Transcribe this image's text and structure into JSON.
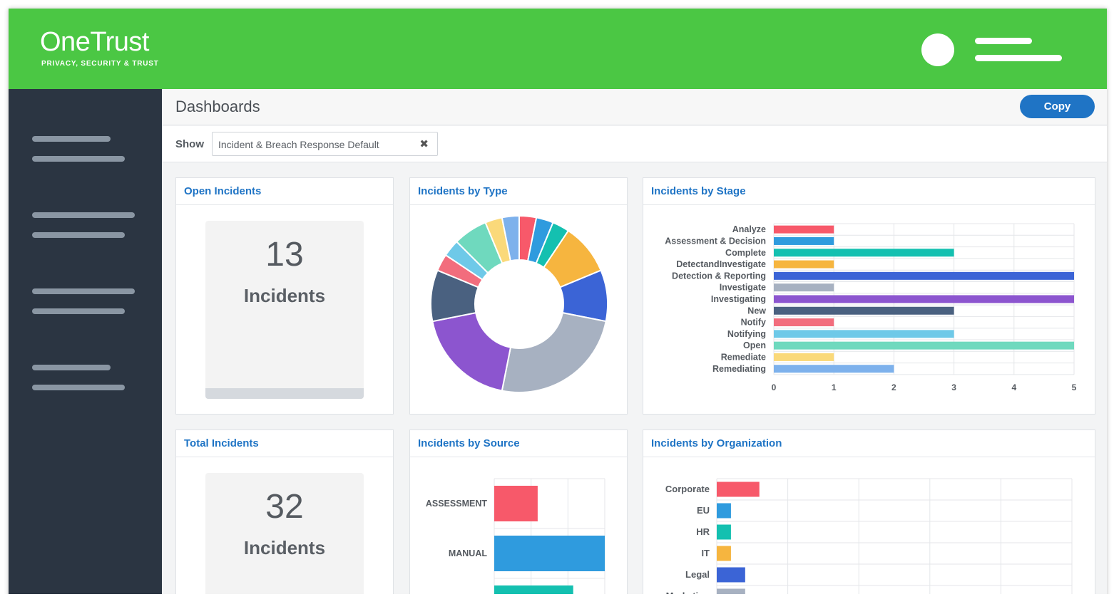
{
  "header": {
    "brand_name": "OneTrust",
    "brand_tagline": "PRIVACY, SECURITY & TRUST",
    "color": "#4bc744"
  },
  "page": {
    "title": "Dashboards",
    "copy_label": "Copy",
    "show_label": "Show",
    "filter_value": "Incident & Breach Response Default",
    "filter_clear_icon": "✖"
  },
  "cards": {
    "open_incidents": {
      "title": "Open Incidents",
      "value": "13",
      "label": "Incidents"
    },
    "total_incidents": {
      "title": "Total Incidents",
      "value": "32",
      "label": "Incidents"
    },
    "by_type": {
      "title": "Incidents by Type"
    },
    "by_stage": {
      "title": "Incidents by Stage"
    },
    "by_source": {
      "title": "Incidents by Source"
    },
    "by_org": {
      "title": "Incidents by Organization"
    }
  },
  "chart_data": [
    {
      "type": "pie",
      "title": "Incidents by Type",
      "donut": true,
      "values": [
        1,
        1,
        1,
        3,
        3,
        8,
        6,
        3,
        1,
        1,
        2,
        1,
        1
      ],
      "colors": [
        "#f7596a",
        "#2f9bde",
        "#14c0b0",
        "#f6b53f",
        "#3b64d6",
        "#a7b1c1",
        "#8c55cf",
        "#4a6180",
        "#f26d7d",
        "#6ec9e8",
        "#6fd9be",
        "#fad97a",
        "#7db1ec"
      ]
    },
    {
      "type": "bar",
      "orientation": "horizontal",
      "title": "Incidents by Stage",
      "categories": [
        "Analyze",
        "Assessment & Decision",
        "Complete",
        "DetectandInvestigate",
        "Detection & Reporting",
        "Investigate",
        "Investigating",
        "New",
        "Notify",
        "Notifying",
        "Open",
        "Remediate",
        "Remediating"
      ],
      "values": [
        1,
        1,
        3,
        1,
        5,
        1,
        5,
        3,
        1,
        3,
        5,
        1,
        2
      ],
      "colors": [
        "#f7596a",
        "#2f9bde",
        "#14c0b0",
        "#f6b53f",
        "#3b64d6",
        "#a7b1c1",
        "#8c55cf",
        "#4a6180",
        "#f26d7d",
        "#6ec9e8",
        "#6fd9be",
        "#fad97a",
        "#7db1ec"
      ],
      "xlim": [
        0,
        5
      ],
      "xticks": [
        "0",
        "1",
        "2",
        "3",
        "4",
        "5"
      ],
      "grid": true
    },
    {
      "type": "bar",
      "orientation": "horizontal",
      "title": "Incidents by Source",
      "categories": [
        "ASSESSMENT",
        "MANUAL",
        ""
      ],
      "values": [
        11,
        28,
        20
      ],
      "colors": [
        "#f7596a",
        "#2f9bde",
        "#14c0b0"
      ],
      "xlim": [
        0,
        28
      ],
      "grid": true
    },
    {
      "type": "bar",
      "orientation": "horizontal",
      "title": "Incidents by Organization",
      "categories": [
        "Corporate",
        "EU",
        "HR",
        "IT",
        "Legal",
        "Marketing"
      ],
      "values": [
        3,
        1,
        1,
        1,
        2,
        2
      ],
      "colors": [
        "#f7596a",
        "#2f9bde",
        "#14c0b0",
        "#f6b53f",
        "#3b64d6",
        "#a7b1c1"
      ],
      "xlim": [
        0,
        25
      ],
      "grid": true
    }
  ]
}
